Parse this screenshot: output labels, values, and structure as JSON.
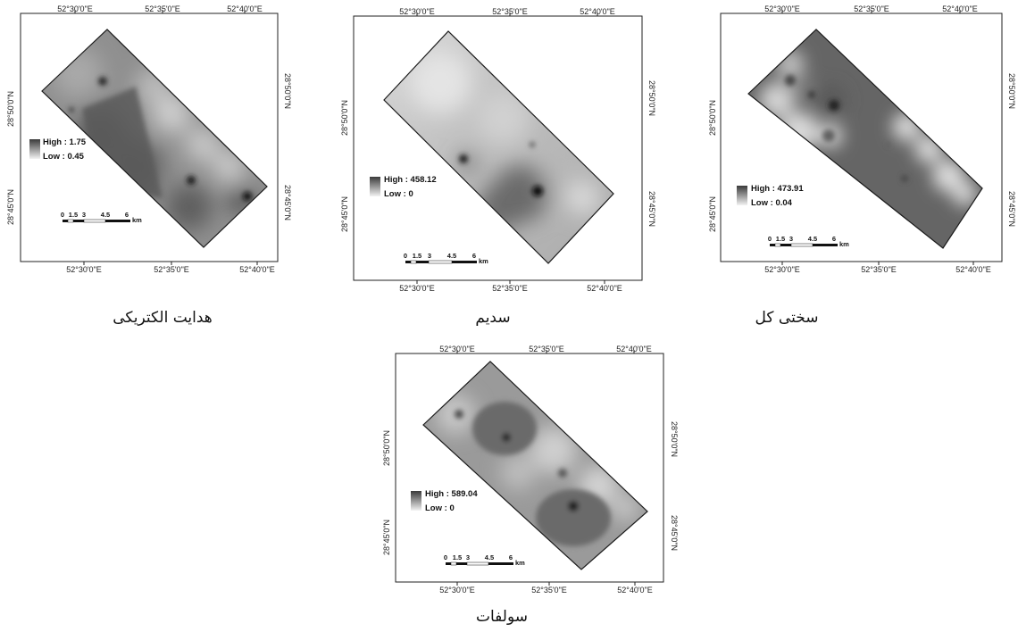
{
  "maps": [
    {
      "caption": "هدایت الکتریکی",
      "top_ticks": [
        "52°30'0\"E",
        "52°35'0\"E",
        "52°40'0\"E"
      ],
      "bottom_ticks": [
        "52°30'0\"E",
        "52°35'0\"E",
        "52°40'0\"E"
      ],
      "left_ticks": [
        "28°50'0\"N",
        "28°45'0\"N"
      ],
      "right_ticks": [
        "28°50'0\"N",
        "28°45'0\"N"
      ],
      "legend": {
        "high": "High : 1.75",
        "low": "Low : 0.45"
      },
      "scale": {
        "labels": [
          "0",
          "1.5",
          "3",
          "4.5",
          "6"
        ],
        "unit": "km"
      }
    },
    {
      "caption": "سدیم",
      "top_ticks": [
        "52°30'0\"E",
        "52°35'0\"E",
        "52°40'0\"E"
      ],
      "bottom_ticks": [
        "52°30'0\"E",
        "52°35'0\"E",
        "52°40'0\"E"
      ],
      "left_ticks": [
        "28°50'0\"N",
        "28°45'0\"N"
      ],
      "right_ticks": [
        "28°50'0\"N",
        "28°45'0\"N"
      ],
      "legend": {
        "high": "High : 458.12",
        "low": "Low : 0"
      },
      "scale": {
        "labels": [
          "0",
          "1.5",
          "3",
          "4.5",
          "6"
        ],
        "unit": "km"
      }
    },
    {
      "caption": "سختی کل",
      "top_ticks": [
        "52°30'0\"E",
        "52°35'0\"E",
        "52°40'0\"E"
      ],
      "bottom_ticks": [
        "52°30'0\"E",
        "52°35'0\"E",
        "52°40'0\"E"
      ],
      "left_ticks": [
        "28°50'0\"N",
        "28°45'0\"N"
      ],
      "right_ticks": [
        "28°50'0\"N",
        "28°45'0\"N"
      ],
      "legend": {
        "high": "High : 473.91",
        "low": "Low : 0.04"
      },
      "scale": {
        "labels": [
          "0",
          "1.5",
          "3",
          "4.5",
          "6"
        ],
        "unit": "km"
      }
    },
    {
      "caption": "سولفات",
      "top_ticks": [
        "52°30'0\"E",
        "52°35'0\"E",
        "52°40'0\"E"
      ],
      "bottom_ticks": [
        "52°30'0\"E",
        "52°35'0\"E",
        "52°40'0\"E"
      ],
      "left_ticks": [
        "28°50'0\"N",
        "28°45'0\"N"
      ],
      "right_ticks": [
        "28°50'0\"N",
        "28°45'0\"N"
      ],
      "legend": {
        "high": "High : 589.04",
        "low": "Low : 0"
      },
      "scale": {
        "labels": [
          "0",
          "1.5",
          "3",
          "4.5",
          "6"
        ],
        "unit": "km"
      }
    }
  ]
}
